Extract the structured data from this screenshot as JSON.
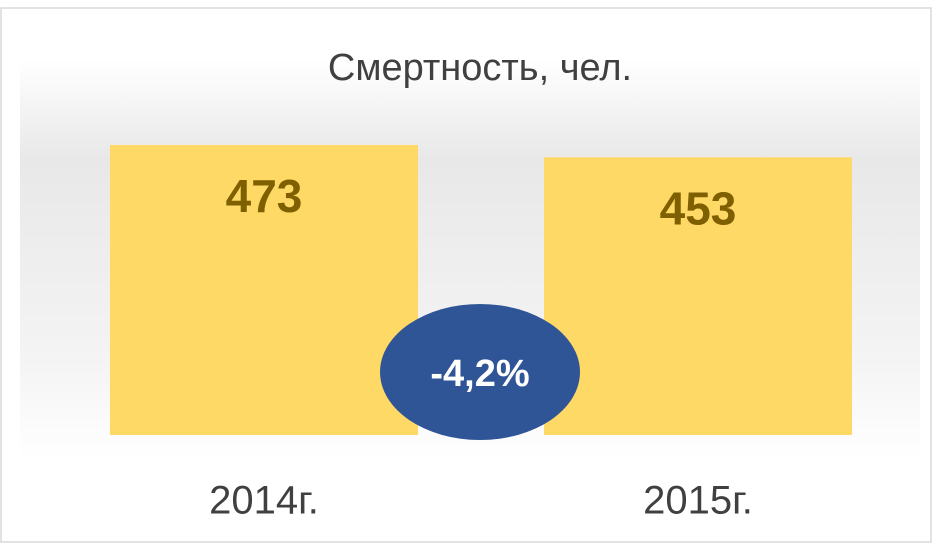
{
  "chart_data": {
    "type": "bar",
    "title": "Смертность, чел.",
    "categories": [
      "2014г.",
      "2015г."
    ],
    "values": [
      473,
      453
    ],
    "color": "#ffd966",
    "annotation": "-4,2%"
  }
}
